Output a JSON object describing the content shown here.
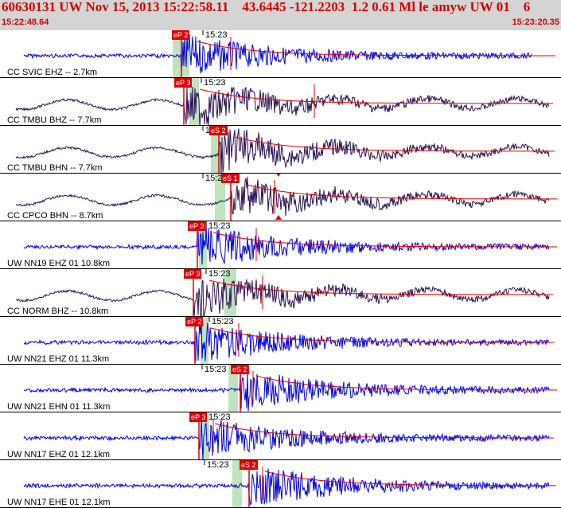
{
  "header": {
    "title": "60630131 UW Nov 15, 2013 15:22:58.11    43.6445 -121.2203  1.2 0.61 Ml le amyw UW 01    6",
    "start_time": "15:22:48.64",
    "end_time": "15:23:20.35"
  },
  "minute_mark": "15:23",
  "colors": {
    "background": "#ffffff",
    "header_bg": "#d4d4d4",
    "header_text": "#d40000",
    "blue_trace": "#0000e0",
    "dark_trace": "#2a1050",
    "pick": "#e00000",
    "window": "#bfe3bf"
  },
  "traces": [
    {
      "label": "CC SVIC EHZ -- 2.7km",
      "color": "blue",
      "picks": [
        "eP 2"
      ]
    },
    {
      "label": "CC TMBU BHZ -- 7.7km",
      "color": "dark",
      "picks": [
        "eP 3"
      ]
    },
    {
      "label": "CC TMBU BHN -- 7.7km",
      "color": "dark",
      "picks": [
        "eS 2"
      ]
    },
    {
      "label": "CC CPCO BHN -- 8.7km",
      "color": "dark",
      "picks": [
        "eS 1"
      ]
    },
    {
      "label": "UW NN19 EHZ 01 10.8km",
      "color": "blue",
      "picks": [
        "eP 3"
      ]
    },
    {
      "label": "CC NORM BHZ -- 10.8km",
      "color": "dark",
      "picks": [
        "eP 3"
      ]
    },
    {
      "label": "UW NN21 EHZ 01 11.3km",
      "color": "blue",
      "picks": [
        "eP 2"
      ]
    },
    {
      "label": "UW NN21 EHN 01 11.3km",
      "color": "blue",
      "picks": [
        "eS 2"
      ]
    },
    {
      "label": "UW NN17 EHZ 01 12.1km",
      "color": "blue",
      "picks": [
        "eP 3"
      ]
    },
    {
      "label": "UW NN17 EHE 01 12.1km",
      "color": "blue",
      "picks": [
        "eS 2"
      ]
    }
  ]
}
